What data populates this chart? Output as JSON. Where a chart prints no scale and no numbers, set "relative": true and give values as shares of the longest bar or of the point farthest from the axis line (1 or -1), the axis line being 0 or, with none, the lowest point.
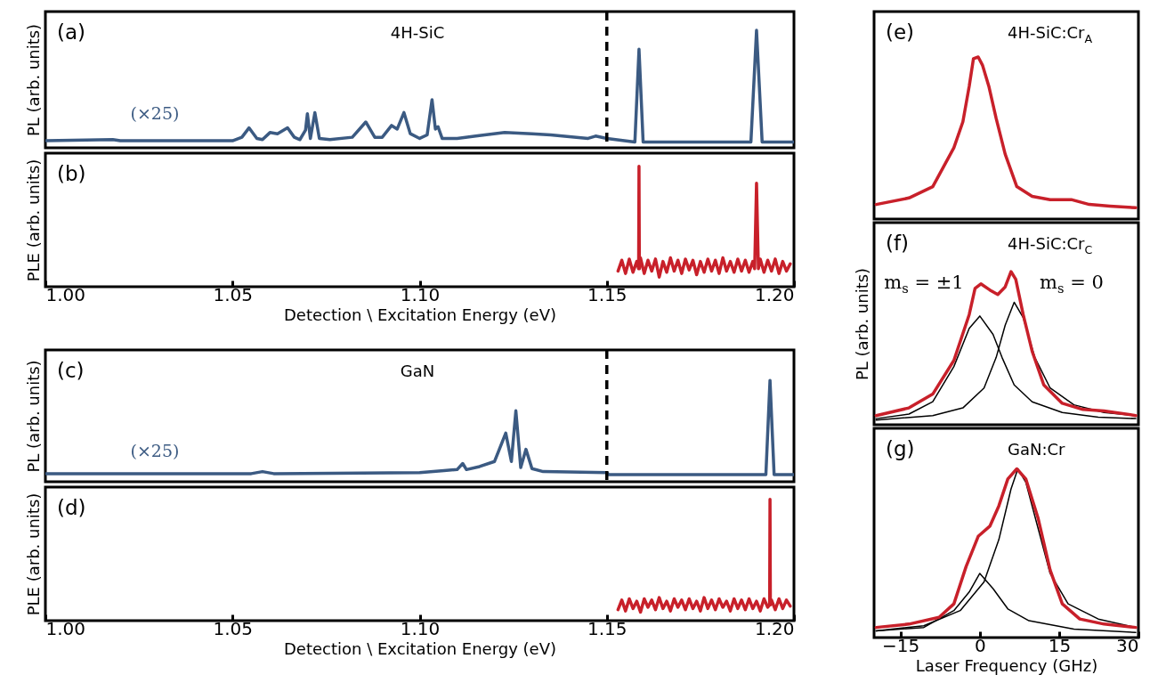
{
  "chart_data": [
    {
      "type": "line",
      "relative": true,
      "ylabel": "PL (arb. units)",
      "tick_labels": false,
      "xlim": [
        1.0,
        1.2
      ],
      "annotations": [
        "(a)",
        "4H-SiC",
        "(×25)"
      ],
      "ref_lines": [
        {
          "axis": "x",
          "value": 1.15,
          "line_style": "dashed",
          "color": "#000000"
        }
      ],
      "series": [
        {
          "color": "#3b5a82",
          "x": [
            1.0,
            1.018,
            1.02,
            1.05,
            1.0525,
            1.0544,
            1.0565,
            1.058,
            1.06,
            1.062,
            1.0647,
            1.0665,
            1.068,
            1.0695,
            1.07,
            1.0708,
            1.072,
            1.0732,
            1.076,
            1.082,
            1.0856,
            1.088,
            1.09,
            1.0925,
            1.094,
            1.0958,
            1.0975,
            1.1,
            1.102,
            1.1033,
            1.1042,
            1.1049,
            1.106,
            1.11,
            1.115,
            1.1227,
            1.13,
            1.135,
            1.145,
            1.147,
            1.15,
            1.1575,
            1.1586,
            1.1597,
            1.1885,
            1.19,
            1.1915,
            1.2
          ],
          "values": [
            0.06,
            0.07,
            0.06,
            0.06,
            0.09,
            0.17,
            0.08,
            0.07,
            0.13,
            0.12,
            0.17,
            0.09,
            0.07,
            0.15,
            0.29,
            0.08,
            0.3,
            0.08,
            0.07,
            0.09,
            0.22,
            0.09,
            0.09,
            0.19,
            0.16,
            0.3,
            0.12,
            0.08,
            0.11,
            0.41,
            0.16,
            0.18,
            0.08,
            0.08,
            0.1,
            0.13,
            0.12,
            0.11,
            0.08,
            0.1,
            0.08,
            0.05,
            0.84,
            0.05,
            0.05,
            1,
            0.05,
            0.05
          ]
        }
      ]
    },
    {
      "type": "line",
      "relative": true,
      "ylabel": "PLE (arb. units)",
      "xlabel": "Detection \\ Excitation Energy (eV)",
      "tick_labels": "x",
      "xlim": [
        1.0,
        1.2
      ],
      "xticks": [
        {
          "value": 1.0,
          "label": "1.00"
        },
        {
          "value": 1.05,
          "label": "1.05"
        },
        {
          "value": 1.1,
          "label": "1.10"
        },
        {
          "value": 1.15,
          "label": "1.15"
        },
        {
          "value": 1.2,
          "label": "1.20"
        }
      ],
      "annotations": [
        "(b)"
      ],
      "series": [
        {
          "color": "#c8202a",
          "x": [
            1.153,
            1.154,
            1.155,
            1.156,
            1.157,
            1.158,
            1.1585,
            1.1586,
            1.1587,
            1.159,
            1.16,
            1.161,
            1.162,
            1.163,
            1.164,
            1.165,
            1.166,
            1.167,
            1.168,
            1.169,
            1.17,
            1.171,
            1.172,
            1.173,
            1.174,
            1.175,
            1.176,
            1.177,
            1.178,
            1.179,
            1.18,
            1.181,
            1.182,
            1.183,
            1.184,
            1.185,
            1.186,
            1.187,
            1.188,
            1.189,
            1.1895,
            1.19,
            1.1905,
            1.191,
            1.192,
            1.193,
            1.194,
            1.195,
            1.196,
            1.197,
            1.198,
            1.199
          ],
          "values": [
            0.13,
            0.22,
            0.11,
            0.23,
            0.12,
            0.21,
            0.15,
            1,
            0.15,
            0.24,
            0.11,
            0.22,
            0.13,
            0.23,
            0.08,
            0.21,
            0.12,
            0.24,
            0.13,
            0.22,
            0.11,
            0.23,
            0.14,
            0.22,
            0.1,
            0.21,
            0.12,
            0.23,
            0.13,
            0.22,
            0.11,
            0.24,
            0.13,
            0.21,
            0.12,
            0.23,
            0.13,
            0.22,
            0.12,
            0.21,
            0.15,
            0.86,
            0.15,
            0.23,
            0.12,
            0.22,
            0.13,
            0.23,
            0.11,
            0.21,
            0.13,
            0.19
          ]
        }
      ]
    },
    {
      "type": "line",
      "relative": true,
      "ylabel": "PL (arb. units)",
      "tick_labels": false,
      "xlim": [
        1.0,
        1.2
      ],
      "annotations": [
        "(c)",
        "GaN",
        "(×25)"
      ],
      "ref_lines": [
        {
          "axis": "x",
          "value": 1.15,
          "line_style": "dashed",
          "color": "#000000"
        }
      ],
      "series": [
        {
          "color": "#3b5a82",
          "x": [
            1.0,
            1.055,
            1.058,
            1.061,
            1.1,
            1.1065,
            1.11,
            1.1115,
            1.1125,
            1.116,
            1.12,
            1.123,
            1.1245,
            1.1257,
            1.127,
            1.1284,
            1.13,
            1.133,
            1.15,
            1.1505,
            1.1925,
            1.1936,
            1.1947,
            1.2
          ],
          "values": [
            0.08,
            0.08,
            0.1,
            0.08,
            0.09,
            0.11,
            0.12,
            0.18,
            0.12,
            0.15,
            0.2,
            0.48,
            0.2,
            0.7,
            0.14,
            0.32,
            0.13,
            0.1,
            0.09,
            0.07,
            0.07,
            1,
            0.07,
            0.07
          ]
        }
      ]
    },
    {
      "type": "line",
      "relative": true,
      "ylabel": "PLE (arb. units)",
      "xlabel": "Detection \\ Excitation Energy (eV)",
      "tick_labels": "x",
      "xlim": [
        1.0,
        1.2
      ],
      "xticks": [
        {
          "value": 1.0,
          "label": "1.00"
        },
        {
          "value": 1.05,
          "label": "1.05"
        },
        {
          "value": 1.1,
          "label": "1.10"
        },
        {
          "value": 1.15,
          "label": "1.15"
        },
        {
          "value": 1.2,
          "label": "1.20"
        }
      ],
      "annotations": [
        "(d)"
      ],
      "series": [
        {
          "color": "#c8202a",
          "x": [
            1.153,
            1.154,
            1.155,
            1.156,
            1.157,
            1.158,
            1.159,
            1.16,
            1.161,
            1.162,
            1.163,
            1.164,
            1.165,
            1.166,
            1.167,
            1.168,
            1.169,
            1.17,
            1.171,
            1.172,
            1.173,
            1.174,
            1.175,
            1.176,
            1.177,
            1.178,
            1.179,
            1.18,
            1.181,
            1.182,
            1.183,
            1.184,
            1.185,
            1.186,
            1.187,
            1.188,
            1.189,
            1.19,
            1.191,
            1.192,
            1.193,
            1.1935,
            1.1936,
            1.1937,
            1.194,
            1.195,
            1.196,
            1.197,
            1.198,
            1.199
          ],
          "values": [
            0.09,
            0.17,
            0.08,
            0.18,
            0.1,
            0.16,
            0.07,
            0.18,
            0.11,
            0.17,
            0.09,
            0.19,
            0.1,
            0.16,
            0.08,
            0.18,
            0.11,
            0.17,
            0.09,
            0.18,
            0.1,
            0.16,
            0.08,
            0.19,
            0.1,
            0.17,
            0.09,
            0.18,
            0.11,
            0.16,
            0.08,
            0.18,
            0.1,
            0.17,
            0.09,
            0.18,
            0.1,
            0.16,
            0.08,
            0.18,
            0.11,
            0.13,
            1,
            0.13,
            0.17,
            0.09,
            0.18,
            0.1,
            0.17,
            0.12
          ]
        }
      ]
    },
    {
      "type": "line",
      "relative": true,
      "tick_labels": false,
      "xlim": [
        -20,
        30
      ],
      "annotations": [
        "(e)",
        "4H-SiC:Cr$_{A}$"
      ],
      "series": [
        {
          "color": "#c8202a",
          "x": [
            -19.6,
            -13.4,
            -8.9,
            -4.9,
            -3.2,
            -2.0,
            -1.2,
            -0.3,
            0.5,
            1.7,
            3.1,
            4.8,
            7.0,
            9.9,
            13.3,
            17.3,
            20.7,
            24.6,
            29.5
          ],
          "values": [
            0.09,
            0.13,
            0.2,
            0.44,
            0.6,
            0.82,
            0.99,
            1,
            0.95,
            0.82,
            0.62,
            0.4,
            0.2,
            0.14,
            0.12,
            0.12,
            0.09,
            0.08,
            0.07
          ]
        }
      ]
    },
    {
      "type": "line",
      "relative": true,
      "ylabel": "PL (arb. units)",
      "tick_labels": false,
      "xlim": [
        -20,
        30
      ],
      "annotations": [
        "(f)",
        "4H-SiC:Cr$_{C}$",
        "m$_{s}$ = ±1",
        "m$_{s}$ = 0"
      ],
      "series": [
        {
          "color": "#000000",
          "x": [
            -19.6,
            -13.4,
            -8.9,
            -4.9,
            -2.0,
            0,
            2.5,
            4.2,
            6.5,
            9.9,
            15.6,
            22.4,
            29.5
          ],
          "values": [
            0.04,
            0.07,
            0.15,
            0.38,
            0.63,
            0.71,
            0.59,
            0.44,
            0.26,
            0.15,
            0.08,
            0.05,
            0.04
          ]
        },
        {
          "color": "#000000",
          "x": [
            -19.6,
            -8.9,
            -3.2,
            0.8,
            3.1,
            4.8,
            6.5,
            8.2,
            10.4,
            13.3,
            17.8,
            23.5,
            29.5
          ],
          "values": [
            0.03,
            0.06,
            0.11,
            0.24,
            0.44,
            0.65,
            0.8,
            0.7,
            0.44,
            0.24,
            0.13,
            0.08,
            0.06
          ]
        },
        {
          "color": "#c8202a",
          "x": [
            -19.6,
            -13.4,
            -8.9,
            -4.9,
            -2.0,
            -0.9,
            0.2,
            1.9,
            3.4,
            4.8,
            5.9,
            6.8,
            8.2,
            9.9,
            12.1,
            15.6,
            19.5,
            23.5,
            29.5
          ],
          "values": [
            0.06,
            0.11,
            0.2,
            0.42,
            0.72,
            0.89,
            0.92,
            0.88,
            0.85,
            0.9,
            1,
            0.95,
            0.72,
            0.48,
            0.26,
            0.14,
            0.1,
            0.09,
            0.06
          ]
        }
      ]
    },
    {
      "type": "line",
      "relative": true,
      "xlabel": "Laser Frequency (GHz)",
      "tick_labels": "x",
      "xlim": [
        -20,
        30
      ],
      "xticks": [
        {
          "value": -15,
          "label": "−15"
        },
        0,
        15,
        30
      ],
      "annotations": [
        "(g)",
        "GaN:Cr"
      ],
      "series": [
        {
          "color": "#000000",
          "x": [
            -19.6,
            -10.6,
            -4.9,
            -2.0,
            0,
            2.5,
            5.3,
            9.3,
            17.8,
            29.5
          ],
          "values": [
            0.04,
            0.06,
            0.16,
            0.27,
            0.38,
            0.29,
            0.17,
            0.1,
            0.05,
            0.03
          ]
        },
        {
          "color": "#000000",
          "x": [
            -19.6,
            -10.6,
            -3.7,
            0.8,
            3.6,
            5.9,
            7.2,
            8.7,
            11.0,
            13.3,
            16.7,
            22.4,
            29.5
          ],
          "values": [
            0.04,
            0.07,
            0.16,
            0.33,
            0.58,
            0.88,
            1,
            0.92,
            0.65,
            0.38,
            0.2,
            0.11,
            0.06
          ]
        },
        {
          "color": "#c8202a",
          "x": [
            -19.6,
            -13.4,
            -7.7,
            -4.9,
            -2.6,
            -0.3,
            1.9,
            3.6,
            5.3,
            7.0,
            8.7,
            11.0,
            13.3,
            15.6,
            18.9,
            23.5,
            29.5
          ],
          "values": [
            0.06,
            0.08,
            0.12,
            0.2,
            0.42,
            0.6,
            0.66,
            0.78,
            0.94,
            1,
            0.94,
            0.71,
            0.4,
            0.2,
            0.11,
            0.08,
            0.06
          ]
        }
      ]
    }
  ]
}
